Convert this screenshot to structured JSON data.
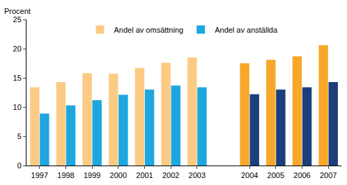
{
  "chart_data": {
    "type": "bar",
    "y_label": "Procent",
    "categories": [
      "1997",
      "1998",
      "1999",
      "2000",
      "2001",
      "2002",
      "2003",
      null,
      "2004",
      "2005",
      "2006",
      "2007"
    ],
    "series": [
      {
        "name": "Andel av omsättning",
        "colors": [
          "#fbcb84",
          "#fbcb84",
          "#fbcb84",
          "#fbcb84",
          "#fbcb84",
          "#fbcb84",
          "#fbcb84",
          "#fbcb84",
          "#f9a72b",
          "#f9a72b",
          "#f9a72b",
          "#f9a72b"
        ],
        "values": [
          13.4,
          14.3,
          15.8,
          15.7,
          16.7,
          17.6,
          18.5,
          null,
          17.5,
          18.1,
          18.7,
          20.6
        ]
      },
      {
        "name": "Andel av anställda",
        "colors": [
          "#1ea6df",
          "#1ea6df",
          "#1ea6df",
          "#1ea6df",
          "#1ea6df",
          "#1ea6df",
          "#1ea6df",
          "#1ea6df",
          "#1c3f7c",
          "#1c3f7c",
          "#1c3f7c",
          "#1c3f7c"
        ],
        "values": [
          8.9,
          10.3,
          11.2,
          12.1,
          13.0,
          13.7,
          13.4,
          null,
          12.2,
          13.0,
          13.4,
          14.3
        ]
      }
    ],
    "ylim": [
      0,
      25
    ],
    "yticks": [
      0,
      5,
      10,
      15,
      20,
      25
    ],
    "grid": false,
    "legend": "top"
  }
}
